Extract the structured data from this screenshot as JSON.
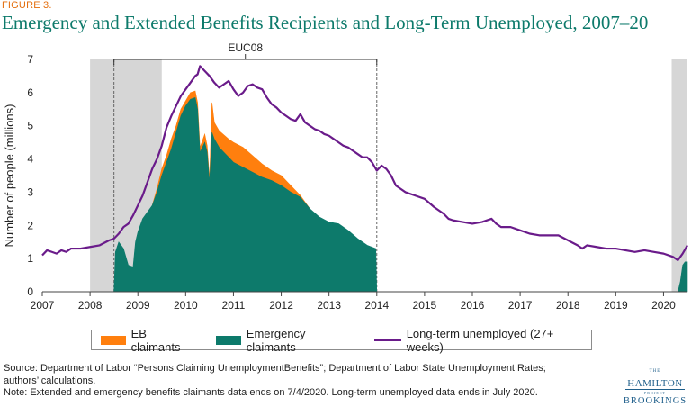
{
  "figure_label": "FIGURE 3.",
  "source_lines": [
    "Source: Department of Labor “Persons Claiming UnemploymentBenefits”; Department of Labor State Unemployment Rates;",
    "authors’ calculations.",
    "Note: Extended and emergency benefits claimants data ends on 7/4/2020. Long-term unemployed data ends in July 2020."
  ],
  "logo": {
    "the": "THE",
    "hamilton": "HAMILTON",
    "project": "PROJECT",
    "brookings": "BROOKINGS"
  },
  "colors": {
    "eb": "#ff7f0e",
    "emergency": "#0d7a6b",
    "ltu": "#6a1b8a",
    "recession": "#d6d6d6",
    "title": "#0d7a6b"
  },
  "chart_data": {
    "type": "area",
    "title": "Emergency and Extended Benefits Recipients and Long-Term Unemployed, 2007–20",
    "xlabel": "",
    "ylabel": "Number of people (millions)",
    "xlim": [
      2007,
      2020.5
    ],
    "ylim": [
      0,
      7
    ],
    "x_ticks": [
      "2007",
      "2008",
      "2009",
      "2010",
      "2011",
      "2012",
      "2013",
      "2014",
      "2015",
      "2016",
      "2017",
      "2018",
      "2019",
      "2020"
    ],
    "y_ticks": [
      0,
      1,
      2,
      3,
      4,
      5,
      6,
      7
    ],
    "recession_shading": [
      [
        2008.0,
        2009.5
      ],
      [
        2020.17,
        2020.5
      ]
    ],
    "annotation": {
      "label": "EUC08",
      "start": 2008.5,
      "end": 2014.0
    },
    "legend_position": "bottom",
    "series": [
      {
        "name": "Emergency claimants",
        "kind": "area",
        "points": [
          [
            2008.5,
            0
          ],
          [
            2008.53,
            1.2
          ],
          [
            2008.6,
            1.5
          ],
          [
            2008.7,
            1.3
          ],
          [
            2008.8,
            0.8
          ],
          [
            2008.9,
            0.75
          ],
          [
            2008.95,
            1.5
          ],
          [
            2009.0,
            1.8
          ],
          [
            2009.1,
            2.2
          ],
          [
            2009.2,
            2.4
          ],
          [
            2009.3,
            2.6
          ],
          [
            2009.4,
            3.0
          ],
          [
            2009.5,
            3.5
          ],
          [
            2009.6,
            3.9
          ],
          [
            2009.7,
            4.3
          ],
          [
            2009.8,
            4.8
          ],
          [
            2009.9,
            5.3
          ],
          [
            2010.0,
            5.6
          ],
          [
            2010.1,
            5.8
          ],
          [
            2010.2,
            5.85
          ],
          [
            2010.25,
            5.5
          ],
          [
            2010.3,
            4.2
          ],
          [
            2010.4,
            4.5
          ],
          [
            2010.45,
            4.2
          ],
          [
            2010.5,
            3.3
          ],
          [
            2010.55,
            4.8
          ],
          [
            2010.6,
            4.6
          ],
          [
            2010.7,
            4.35
          ],
          [
            2010.9,
            4.05
          ],
          [
            2011.0,
            3.9
          ],
          [
            2011.2,
            3.75
          ],
          [
            2011.4,
            3.6
          ],
          [
            2011.6,
            3.45
          ],
          [
            2011.8,
            3.35
          ],
          [
            2012.0,
            3.2
          ],
          [
            2012.2,
            3.0
          ],
          [
            2012.4,
            2.85
          ],
          [
            2012.6,
            2.5
          ],
          [
            2012.8,
            2.25
          ],
          [
            2013.0,
            2.1
          ],
          [
            2013.2,
            2.05
          ],
          [
            2013.4,
            1.85
          ],
          [
            2013.6,
            1.6
          ],
          [
            2013.8,
            1.4
          ],
          [
            2013.98,
            1.3
          ],
          [
            2014.0,
            0
          ],
          [
            2020.3,
            0
          ],
          [
            2020.35,
            0.3
          ],
          [
            2020.4,
            0.8
          ],
          [
            2020.45,
            0.9
          ],
          [
            2020.5,
            0.9
          ],
          [
            2020.5,
            0
          ]
        ]
      },
      {
        "name": "EB claimants",
        "kind": "area",
        "points": [
          [
            2009.3,
            2.6
          ],
          [
            2009.4,
            3.1
          ],
          [
            2009.5,
            3.7
          ],
          [
            2009.6,
            4.1
          ],
          [
            2009.7,
            4.6
          ],
          [
            2009.8,
            5.0
          ],
          [
            2009.9,
            5.5
          ],
          [
            2010.0,
            5.75
          ],
          [
            2010.1,
            6.0
          ],
          [
            2010.2,
            6.05
          ],
          [
            2010.25,
            5.7
          ],
          [
            2010.3,
            4.35
          ],
          [
            2010.4,
            4.75
          ],
          [
            2010.45,
            4.4
          ],
          [
            2010.5,
            3.4
          ],
          [
            2010.55,
            5.7
          ],
          [
            2010.6,
            5.1
          ],
          [
            2010.7,
            4.85
          ],
          [
            2010.9,
            4.6
          ],
          [
            2011.0,
            4.5
          ],
          [
            2011.2,
            4.35
          ],
          [
            2011.4,
            4.1
          ],
          [
            2011.6,
            3.85
          ],
          [
            2011.8,
            3.65
          ],
          [
            2012.0,
            3.5
          ],
          [
            2012.2,
            3.2
          ],
          [
            2012.4,
            2.9
          ],
          [
            2012.6,
            2.5
          ]
        ]
      },
      {
        "name": "Long-term unemployed (27+ weeks)",
        "kind": "line",
        "points": [
          [
            2007.0,
            1.1
          ],
          [
            2007.1,
            1.25
          ],
          [
            2007.2,
            1.2
          ],
          [
            2007.3,
            1.15
          ],
          [
            2007.4,
            1.25
          ],
          [
            2007.5,
            1.2
          ],
          [
            2007.6,
            1.3
          ],
          [
            2007.8,
            1.3
          ],
          [
            2008.0,
            1.35
          ],
          [
            2008.2,
            1.4
          ],
          [
            2008.4,
            1.55
          ],
          [
            2008.5,
            1.6
          ],
          [
            2008.6,
            1.75
          ],
          [
            2008.7,
            1.95
          ],
          [
            2008.8,
            2.05
          ],
          [
            2008.9,
            2.3
          ],
          [
            2009.0,
            2.6
          ],
          [
            2009.1,
            2.9
          ],
          [
            2009.2,
            3.3
          ],
          [
            2009.3,
            3.7
          ],
          [
            2009.4,
            4.0
          ],
          [
            2009.5,
            4.4
          ],
          [
            2009.6,
            4.95
          ],
          [
            2009.7,
            5.3
          ],
          [
            2009.8,
            5.6
          ],
          [
            2009.9,
            5.9
          ],
          [
            2010.0,
            6.1
          ],
          [
            2010.1,
            6.3
          ],
          [
            2010.2,
            6.5
          ],
          [
            2010.25,
            6.55
          ],
          [
            2010.3,
            6.8
          ],
          [
            2010.4,
            6.65
          ],
          [
            2010.5,
            6.5
          ],
          [
            2010.6,
            6.3
          ],
          [
            2010.7,
            6.15
          ],
          [
            2010.8,
            6.25
          ],
          [
            2010.9,
            6.35
          ],
          [
            2011.0,
            6.1
          ],
          [
            2011.1,
            5.9
          ],
          [
            2011.2,
            6.0
          ],
          [
            2011.3,
            6.2
          ],
          [
            2011.4,
            6.25
          ],
          [
            2011.5,
            6.15
          ],
          [
            2011.6,
            6.1
          ],
          [
            2011.7,
            5.85
          ],
          [
            2011.8,
            5.65
          ],
          [
            2011.9,
            5.55
          ],
          [
            2012.0,
            5.4
          ],
          [
            2012.1,
            5.3
          ],
          [
            2012.2,
            5.2
          ],
          [
            2012.3,
            5.15
          ],
          [
            2012.4,
            5.35
          ],
          [
            2012.5,
            5.1
          ],
          [
            2012.6,
            5.0
          ],
          [
            2012.7,
            4.9
          ],
          [
            2012.8,
            4.85
          ],
          [
            2012.9,
            4.75
          ],
          [
            2013.0,
            4.7
          ],
          [
            2013.1,
            4.6
          ],
          [
            2013.2,
            4.5
          ],
          [
            2013.3,
            4.4
          ],
          [
            2013.4,
            4.35
          ],
          [
            2013.5,
            4.25
          ],
          [
            2013.6,
            4.15
          ],
          [
            2013.7,
            4.05
          ],
          [
            2013.8,
            4.05
          ],
          [
            2013.9,
            3.9
          ],
          [
            2014.0,
            3.65
          ],
          [
            2014.1,
            3.8
          ],
          [
            2014.2,
            3.7
          ],
          [
            2014.3,
            3.5
          ],
          [
            2014.4,
            3.2
          ],
          [
            2014.5,
            3.1
          ],
          [
            2014.6,
            3.0
          ],
          [
            2014.8,
            2.9
          ],
          [
            2015.0,
            2.8
          ],
          [
            2015.2,
            2.55
          ],
          [
            2015.4,
            2.35
          ],
          [
            2015.5,
            2.2
          ],
          [
            2015.6,
            2.15
          ],
          [
            2015.8,
            2.1
          ],
          [
            2016.0,
            2.05
          ],
          [
            2016.2,
            2.1
          ],
          [
            2016.4,
            2.2
          ],
          [
            2016.5,
            2.05
          ],
          [
            2016.6,
            1.95
          ],
          [
            2016.8,
            1.95
          ],
          [
            2017.0,
            1.85
          ],
          [
            2017.2,
            1.75
          ],
          [
            2017.4,
            1.7
          ],
          [
            2017.6,
            1.7
          ],
          [
            2017.8,
            1.7
          ],
          [
            2018.0,
            1.55
          ],
          [
            2018.2,
            1.4
          ],
          [
            2018.3,
            1.3
          ],
          [
            2018.4,
            1.4
          ],
          [
            2018.6,
            1.35
          ],
          [
            2018.8,
            1.3
          ],
          [
            2019.0,
            1.3
          ],
          [
            2019.2,
            1.25
          ],
          [
            2019.4,
            1.2
          ],
          [
            2019.6,
            1.25
          ],
          [
            2019.8,
            1.2
          ],
          [
            2020.0,
            1.15
          ],
          [
            2020.1,
            1.1
          ],
          [
            2020.2,
            1.05
          ],
          [
            2020.3,
            0.95
          ],
          [
            2020.4,
            1.15
          ],
          [
            2020.5,
            1.4
          ]
        ]
      }
    ]
  }
}
